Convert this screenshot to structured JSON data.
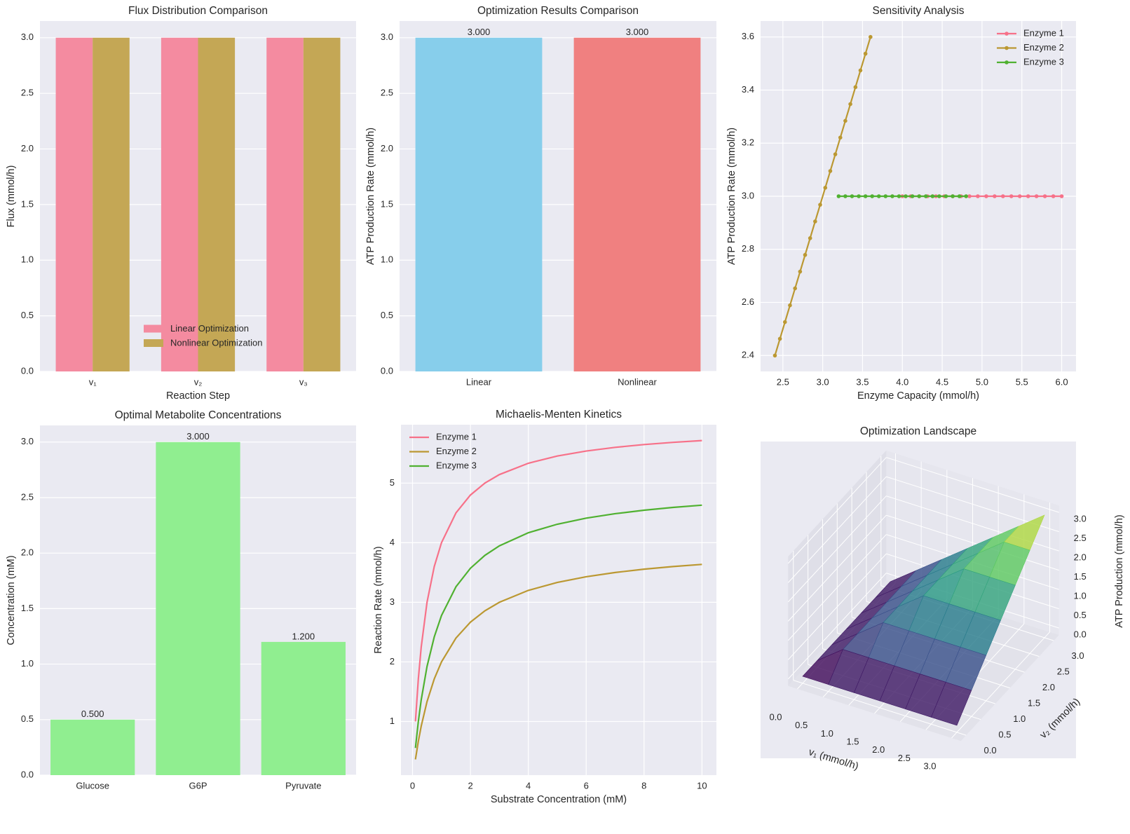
{
  "chart_data": [
    {
      "type": "bar",
      "title": "Flux Distribution Comparison",
      "xlabel": "Reaction Step",
      "ylabel": "Flux (mmol/h)",
      "categories": [
        "v₁",
        "v₂",
        "v₃"
      ],
      "series": [
        {
          "name": "Linear Optimization",
          "color": "#f48ba0",
          "values": [
            3,
            3,
            3
          ]
        },
        {
          "name": "Nonlinear Optimization",
          "color": "#c4a755",
          "values": [
            3,
            3,
            3
          ]
        }
      ],
      "ylim": [
        0,
        3.15
      ],
      "yticks": [
        {
          "value": 0,
          "label": "0.0"
        },
        0.5,
        {
          "value": 1,
          "label": "1.0"
        },
        1.5,
        {
          "value": 2,
          "label": "2.0"
        },
        2.5,
        {
          "value": 3,
          "label": "3.0"
        }
      ],
      "grid": true,
      "legend": "lower center"
    },
    {
      "type": "bar",
      "title": "Optimization Results Comparison",
      "ylabel": "ATP Production Rate (mmol/h)",
      "categories": [
        "Linear",
        "Nonlinear"
      ],
      "values": [
        3,
        3
      ],
      "value_labels": [
        "3.000",
        "3.000"
      ],
      "colors": [
        "#87ceeb",
        "#f08080"
      ],
      "ylim": [
        0,
        3.15
      ],
      "yticks": [
        {
          "value": 0,
          "label": "0.0"
        },
        0.5,
        {
          "value": 1,
          "label": "1.0"
        },
        1.5,
        {
          "value": 2,
          "label": "2.0"
        },
        2.5,
        {
          "value": 3,
          "label": "3.0"
        }
      ],
      "grid": true
    },
    {
      "type": "line",
      "title": "Sensitivity Analysis",
      "xlabel": "Enzyme Capacity (mmol/h)",
      "ylabel": "ATP Production Rate (mmol/h)",
      "series": [
        {
          "name": "Enzyme 1",
          "color": "#f77189",
          "x": [
            4.0,
            4.105,
            4.211,
            4.316,
            4.421,
            4.526,
            4.632,
            4.737,
            4.842,
            4.947,
            5.053,
            5.158,
            5.263,
            5.368,
            5.474,
            5.579,
            5.684,
            5.789,
            5.895,
            6.0
          ],
          "values": [
            3,
            3,
            3,
            3,
            3,
            3,
            3,
            3,
            3,
            3,
            3,
            3,
            3,
            3,
            3,
            3,
            3,
            3,
            3,
            3
          ]
        },
        {
          "name": "Enzyme 2",
          "color": "#bb9832",
          "x": [
            2.4,
            2.463,
            2.526,
            2.589,
            2.653,
            2.716,
            2.779,
            2.842,
            2.905,
            2.968,
            3.032,
            3.095,
            3.158,
            3.221,
            3.284,
            3.347,
            3.411,
            3.474,
            3.537,
            3.6
          ],
          "values": [
            2.4,
            2.463,
            2.526,
            2.589,
            2.653,
            2.716,
            2.779,
            2.842,
            2.905,
            2.968,
            3.032,
            3.095,
            3.158,
            3.221,
            3.284,
            3.347,
            3.411,
            3.474,
            3.537,
            3.6
          ]
        },
        {
          "name": "Enzyme 3",
          "color": "#50b131",
          "x": [
            3.2,
            3.284,
            3.368,
            3.453,
            3.537,
            3.621,
            3.705,
            3.789,
            3.874,
            3.958,
            4.042,
            4.126,
            4.211,
            4.295,
            4.379,
            4.463,
            4.547,
            4.632,
            4.716,
            4.8
          ],
          "values": [
            3,
            3,
            3,
            3,
            3,
            3,
            3,
            3,
            3,
            3,
            3,
            3,
            3,
            3,
            3,
            3,
            3,
            3,
            3,
            3
          ]
        }
      ],
      "markers": true,
      "xlim": [
        2.22,
        6.18
      ],
      "xticks": [
        2.5,
        {
          "value": 3,
          "label": "3.0"
        },
        3.5,
        {
          "value": 4,
          "label": "4.0"
        },
        4.5,
        {
          "value": 5,
          "label": "5.0"
        },
        5.5,
        {
          "value": 6,
          "label": "6.0"
        }
      ],
      "ylim": [
        2.34,
        3.66
      ],
      "yticks": [
        2.4,
        2.6,
        2.8,
        {
          "value": 3,
          "label": "3.0"
        },
        3.2,
        3.4,
        3.6
      ],
      "grid": true,
      "legend": "upper right"
    },
    {
      "type": "bar",
      "title": "Optimal Metabolite Concentrations",
      "ylabel": "Concentration (mM)",
      "categories": [
        "Glucose",
        "G6P",
        "Pyruvate"
      ],
      "values": [
        0.5,
        3,
        1.2
      ],
      "value_labels": [
        "0.500",
        "3.000",
        "1.200"
      ],
      "color": "#90ee90",
      "ylim": [
        0,
        3.15
      ],
      "yticks": [
        {
          "value": 0,
          "label": "0.0"
        },
        0.5,
        {
          "value": 1,
          "label": "1.0"
        },
        1.5,
        {
          "value": 2,
          "label": "2.0"
        },
        2.5,
        {
          "value": 3,
          "label": "3.0"
        }
      ],
      "grid": true
    },
    {
      "type": "line",
      "title": "Michaelis-Menten Kinetics",
      "xlabel": "Substrate Concentration (mM)",
      "ylabel": "Reaction Rate (mmol/h)",
      "x": [
        0.1,
        0.2,
        0.3,
        0.5,
        0.75,
        1,
        1.5,
        2,
        2.5,
        3,
        4,
        5,
        6,
        7,
        8,
        9,
        10
      ],
      "series": [
        {
          "name": "Enzyme 1",
          "color": "#f77189",
          "values": [
            1.0,
            1.714,
            2.25,
            3.0,
            3.6,
            4.0,
            4.5,
            4.8,
            5.0,
            5.143,
            5.333,
            5.455,
            5.538,
            5.6,
            5.647,
            5.684,
            5.714
          ]
        },
        {
          "name": "Enzyme 2",
          "color": "#bb9832",
          "values": [
            0.364,
            0.667,
            0.923,
            1.333,
            1.714,
            2.0,
            2.4,
            2.667,
            2.857,
            3.0,
            3.2,
            3.333,
            3.429,
            3.5,
            3.556,
            3.6,
            3.636
          ]
        },
        {
          "name": "Enzyme 3",
          "color": "#50b131",
          "values": [
            0.556,
            1.0,
            1.364,
            1.923,
            2.419,
            2.778,
            3.261,
            3.571,
            3.788,
            3.947,
            4.167,
            4.31,
            4.412,
            4.487,
            4.545,
            4.592,
            4.63
          ]
        }
      ],
      "xlim": [
        -0.4,
        10.5
      ],
      "xticks": [
        0,
        2,
        4,
        6,
        8,
        10
      ],
      "ylim": [
        0.1,
        5.98
      ],
      "yticks": [
        1,
        2,
        3,
        4,
        5
      ],
      "grid": true,
      "legend": "upper left"
    },
    {
      "type": "surface",
      "title": "Optimization Landscape",
      "xlabel": "v₁ (mmol/h)",
      "ylabel": "v₂ (mmol/h)",
      "zlabel": "ATP Production (mmol/h)",
      "x": [
        0,
        0.5,
        1,
        1.5,
        2,
        2.5,
        3
      ],
      "y": [
        0,
        0.5,
        1,
        1.5,
        2,
        2.5,
        3
      ],
      "z": [
        [
          0,
          0,
          0,
          0,
          0,
          0,
          0
        ],
        [
          0,
          0.5,
          0.5,
          0.5,
          0.5,
          0.5,
          0.5
        ],
        [
          0,
          0.5,
          1,
          1,
          1,
          1,
          1
        ],
        [
          0,
          0.5,
          1,
          1.5,
          1.5,
          1.5,
          1.5
        ],
        [
          0,
          0.5,
          1,
          1.5,
          2,
          2,
          2
        ],
        [
          0,
          0.5,
          1,
          1.5,
          2,
          2.5,
          2.5
        ],
        [
          0,
          0.5,
          1,
          1.5,
          2,
          2.5,
          3
        ]
      ],
      "colormap": "viridis",
      "xlim": [
        0,
        3
      ],
      "ylim": [
        0,
        3
      ],
      "zlim": [
        0,
        3
      ],
      "xticks": [
        {
          "value": 0,
          "label": "0.0"
        },
        0.5,
        {
          "value": 1,
          "label": "1.0"
        },
        1.5,
        {
          "value": 2,
          "label": "2.0"
        },
        2.5,
        {
          "value": 3,
          "label": "3.0"
        }
      ],
      "yticks": [
        {
          "value": 0,
          "label": "0.0"
        },
        0.5,
        {
          "value": 1,
          "label": "1.0"
        },
        1.5,
        {
          "value": 2,
          "label": "2.0"
        },
        2.5,
        {
          "value": 3,
          "label": "3.0"
        }
      ],
      "zticks": [
        {
          "value": 0,
          "label": "0.0"
        },
        0.5,
        {
          "value": 1,
          "label": "1.0"
        },
        1.5,
        {
          "value": 2,
          "label": "2.0"
        },
        2.5,
        {
          "value": 3,
          "label": "3.0"
        }
      ]
    }
  ]
}
